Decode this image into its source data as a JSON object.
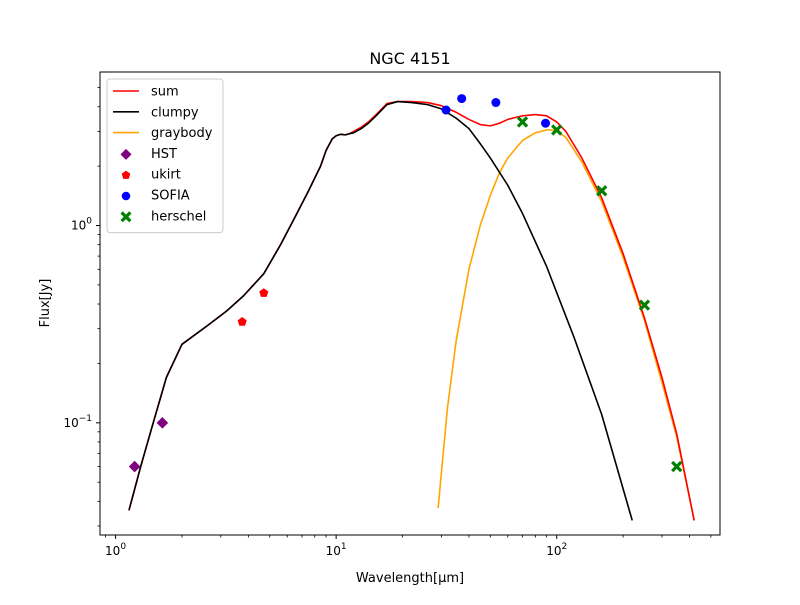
{
  "chart_data": {
    "type": "line",
    "title": "NGC 4151",
    "xlabel": "Wavelength[μm]",
    "ylabel": "Flux[Jy]",
    "xscale": "log",
    "yscale": "log",
    "xlim": [
      0.85,
      550
    ],
    "ylim": [
      0.027,
      6.0
    ],
    "grid": false,
    "legend_position": "top-left",
    "x_ticks": [
      {
        "value": 1,
        "base": "10",
        "exp": "0"
      },
      {
        "value": 10,
        "base": "10",
        "exp": "1"
      },
      {
        "value": 100,
        "base": "10",
        "exp": "2"
      }
    ],
    "y_ticks": [
      {
        "value": 0.1,
        "base": "10",
        "exp": "−1"
      },
      {
        "value": 1,
        "base": "10",
        "exp": "0"
      }
    ],
    "lines": [
      {
        "name": "sum",
        "color": "#ff0000",
        "x": [
          1.15,
          1.3,
          1.45,
          1.7,
          2.0,
          2.6,
          3.2,
          3.8,
          4.7,
          5.6,
          6.5,
          7.5,
          8.5,
          9.0,
          9.6,
          10.0,
          10.5,
          11.0,
          11.5,
          12.0,
          13.0,
          14.0,
          15.0,
          17.0,
          19.0,
          22.0,
          26.0,
          30.0,
          35.0,
          40.0,
          45.0,
          50.0,
          55.0,
          60.0,
          70.0,
          80.0,
          90.0,
          100.0,
          110.0,
          130.0,
          160.0,
          200.0,
          250.0,
          300.0,
          350.0,
          420.0
        ],
        "y": [
          0.036,
          0.06,
          0.092,
          0.17,
          0.25,
          0.31,
          0.37,
          0.44,
          0.57,
          0.8,
          1.1,
          1.5,
          2.0,
          2.4,
          2.75,
          2.85,
          2.9,
          2.88,
          2.92,
          3.0,
          3.15,
          3.35,
          3.6,
          4.15,
          4.25,
          4.25,
          4.2,
          4.05,
          3.75,
          3.45,
          3.25,
          3.2,
          3.3,
          3.45,
          3.6,
          3.65,
          3.6,
          3.35,
          3.0,
          2.2,
          1.38,
          0.72,
          0.34,
          0.17,
          0.088,
          0.032
        ]
      },
      {
        "name": "clumpy",
        "color": "#000000",
        "x": [
          1.15,
          1.3,
          1.45,
          1.7,
          2.0,
          2.6,
          3.2,
          3.8,
          4.7,
          5.6,
          6.5,
          7.5,
          8.5,
          9.0,
          9.6,
          10.0,
          10.5,
          11.0,
          11.5,
          12.0,
          13.0,
          14.0,
          15.0,
          17.0,
          19.0,
          22.0,
          26.0,
          30.0,
          35.0,
          40.0,
          45.0,
          50.0,
          60.0,
          70.0,
          90.0,
          120.0,
          160.0,
          220.0
        ],
        "y": [
          0.036,
          0.06,
          0.092,
          0.17,
          0.25,
          0.31,
          0.37,
          0.44,
          0.57,
          0.8,
          1.1,
          1.5,
          2.0,
          2.4,
          2.75,
          2.85,
          2.9,
          2.88,
          2.92,
          2.95,
          3.1,
          3.3,
          3.55,
          4.1,
          4.25,
          4.2,
          4.1,
          3.9,
          3.5,
          3.1,
          2.6,
          2.2,
          1.6,
          1.15,
          0.62,
          0.27,
          0.11,
          0.032
        ]
      },
      {
        "name": "graybody",
        "color": "#ffa500",
        "x": [
          29.0,
          32.0,
          35.0,
          40.0,
          45.0,
          50.0,
          55.0,
          60.0,
          70.0,
          80.0,
          90.0,
          95.0,
          100.0,
          110.0,
          130.0,
          160.0,
          200.0,
          250.0,
          300.0,
          350.0,
          420.0
        ],
        "y": [
          0.037,
          0.12,
          0.26,
          0.6,
          1.0,
          1.42,
          1.85,
          2.2,
          2.7,
          2.95,
          3.05,
          3.05,
          3.0,
          2.8,
          2.1,
          1.32,
          0.69,
          0.33,
          0.16,
          0.085,
          0.032
        ]
      }
    ],
    "points": [
      {
        "name": "HST",
        "color": "#800080",
        "marker": "diamond",
        "x": [
          1.22,
          1.63
        ],
        "y": [
          0.06,
          0.1
        ]
      },
      {
        "name": "ukirt",
        "color": "#ff0000",
        "marker": "pentagon",
        "x": [
          3.75,
          4.7
        ],
        "y": [
          0.325,
          0.455
        ]
      },
      {
        "name": "SOFIA",
        "color": "#0000ff",
        "marker": "circle",
        "x": [
          31.5,
          37.1,
          53.0,
          89.0
        ],
        "y": [
          3.85,
          4.4,
          4.2,
          3.3
        ]
      },
      {
        "name": "herschel",
        "color": "#008000",
        "marker": "x",
        "x": [
          70.0,
          100.0,
          160.0,
          250.0,
          350.0
        ],
        "y": [
          3.35,
          3.05,
          1.5,
          0.395,
          0.06
        ]
      }
    ]
  }
}
